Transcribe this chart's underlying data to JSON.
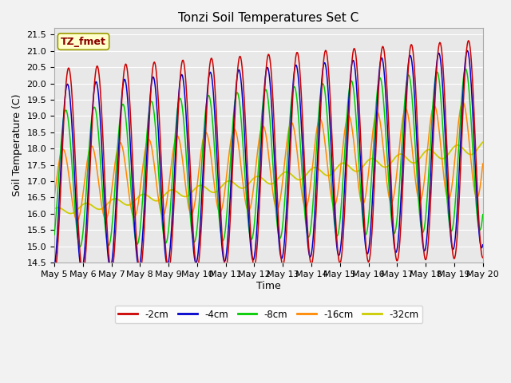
{
  "title": "Tonzi Soil Temperatures Set C",
  "xlabel": "Time",
  "ylabel": "Soil Temperature (C)",
  "ylim": [
    14.5,
    21.7
  ],
  "x_tick_labels": [
    "May 5",
    "May 6",
    "May 7",
    "May 8",
    "May 9",
    "May 10",
    "May 11",
    "May 12",
    "May 13",
    "May 14",
    "May 15",
    "May 16",
    "May 17",
    "May 18",
    "May 19",
    "May 20"
  ],
  "legend_labels": [
    "-2cm",
    "-4cm",
    "-8cm",
    "-16cm",
    "-32cm"
  ],
  "line_colors": [
    "#cc0000",
    "#0000cc",
    "#00cc00",
    "#ff8800",
    "#cccc00"
  ],
  "annotation_text": "TZ_fmet",
  "annotation_color": "#8b0000",
  "annotation_bg": "#ffffcc",
  "annotation_edge": "#999900",
  "plot_bg": "#e8e8e8",
  "fig_bg": "#f2f2f2",
  "grid_color": "#ffffff",
  "title_fontsize": 11,
  "label_fontsize": 9,
  "tick_fontsize": 8
}
